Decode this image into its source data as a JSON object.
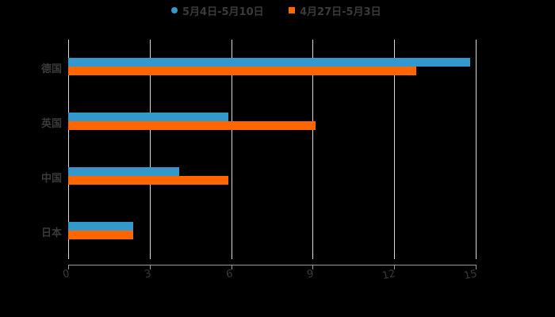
{
  "chart_data": {
    "type": "bar",
    "orientation": "horizontal",
    "title": "",
    "xlabel": "",
    "ylabel": "",
    "categories": [
      "德国",
      "英国",
      "中国",
      "日本"
    ],
    "series": [
      {
        "name": "5月4日-5月10日",
        "color": "#3399cc",
        "values": [
          14.8,
          5.9,
          4.1,
          2.4
        ]
      },
      {
        "name": "4月27日-5月3日",
        "color": "#ff6600",
        "values": [
          12.8,
          9.1,
          5.9,
          2.4
        ]
      }
    ],
    "xlim": [
      0,
      15
    ],
    "xticks": [
      "0",
      "3",
      "6",
      "9",
      "12",
      "15"
    ],
    "grid": true,
    "legend_position": "top"
  },
  "legend": {
    "items": [
      {
        "label": "5月4日-5月10日",
        "color": "#3399cc",
        "shape": "circle"
      },
      {
        "label": "4月27日-5月3日",
        "color": "#ff6600",
        "shape": "square"
      }
    ]
  }
}
